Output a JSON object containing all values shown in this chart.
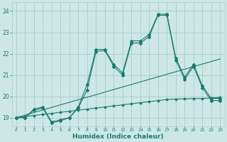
{
  "xlabel": "Humidex (Indice chaleur)",
  "xlim": [
    -0.5,
    23.5
  ],
  "ylim": [
    18.6,
    24.4
  ],
  "yticks": [
    19,
    20,
    21,
    22,
    23,
    24
  ],
  "xticks": [
    0,
    1,
    2,
    3,
    4,
    5,
    6,
    7,
    8,
    9,
    10,
    11,
    12,
    13,
    14,
    15,
    16,
    17,
    18,
    19,
    20,
    21,
    22,
    23
  ],
  "bg_color": "#cde8e4",
  "grid_color": "#a8ccca",
  "line_color": "#1a7a6e",
  "line1_x": [
    0,
    1,
    2,
    3,
    4,
    5,
    6,
    7,
    8,
    9,
    10,
    11,
    12,
    13,
    14,
    15,
    16,
    17,
    18,
    19,
    20,
    21,
    22,
    23
  ],
  "line1_y": [
    19.0,
    19.0,
    19.4,
    19.5,
    18.8,
    18.9,
    19.0,
    19.5,
    20.55,
    22.2,
    22.2,
    21.5,
    21.1,
    22.6,
    22.6,
    22.9,
    23.85,
    23.85,
    21.8,
    20.9,
    21.5,
    20.5,
    19.9,
    19.9
  ],
  "line2_x": [
    0,
    1,
    2,
    3,
    4,
    5,
    6,
    7,
    8,
    9,
    10,
    11,
    12,
    13,
    14,
    15,
    16,
    17,
    18,
    19,
    20,
    21,
    22,
    23
  ],
  "line2_y": [
    19.0,
    19.0,
    19.35,
    19.45,
    18.75,
    18.85,
    19.0,
    19.45,
    20.3,
    22.1,
    22.15,
    21.4,
    21.0,
    22.5,
    22.5,
    22.8,
    23.8,
    23.8,
    21.7,
    20.8,
    21.4,
    20.4,
    19.8,
    19.8
  ],
  "line3_x": [
    0,
    23
  ],
  "line3_y": [
    19.0,
    21.75
  ],
  "line4_x": [
    0,
    1,
    2,
    3,
    4,
    5,
    6,
    7,
    8,
    9,
    10,
    11,
    12,
    13,
    14,
    15,
    16,
    17,
    18,
    19,
    20,
    21,
    22,
    23
  ],
  "line4_y": [
    19.0,
    19.05,
    19.1,
    19.15,
    19.2,
    19.25,
    19.3,
    19.35,
    19.4,
    19.45,
    19.5,
    19.55,
    19.6,
    19.65,
    19.7,
    19.75,
    19.8,
    19.85,
    19.87,
    19.88,
    19.89,
    19.9,
    19.92,
    19.95
  ]
}
